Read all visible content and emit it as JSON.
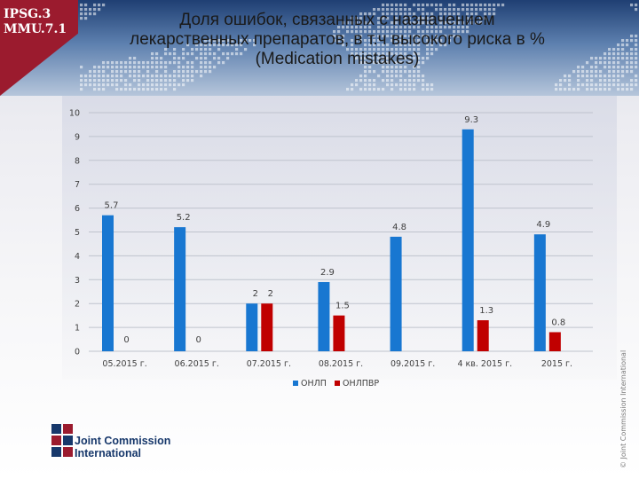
{
  "badge": {
    "text": "IPSG.3\nMMU.7.1"
  },
  "title": {
    "line1": "Доля ошибок, связанных с назначением",
    "line2": "лекарственных препаратов, в т.ч высокого риска в %",
    "line3": "(Medication mistakes)"
  },
  "copyright": "© Joint Commission International",
  "logo": {
    "text": "Joint Commission\nInternational"
  },
  "colors": {
    "accent": "#9b1b2e",
    "onlp": "#1877d1",
    "onlpvr": "#c00000",
    "brand": "#17386b"
  },
  "chart_data": {
    "type": "bar",
    "title": "Доля ошибок, связанных с назначением лекарственных препаратов, в т.ч высокого риска в % (Medication mistakes)",
    "categories": [
      "05.2015 г.",
      "06.2015 г.",
      "07.2015 г.",
      "08.2015 г.",
      "09.2015 г.",
      "4 кв. 2015 г.",
      "2015 г."
    ],
    "series": [
      {
        "name": "ОНЛП",
        "color": "#1877d1",
        "values": [
          5.7,
          5.2,
          2,
          2.9,
          4.8,
          9.3,
          4.9
        ]
      },
      {
        "name": "ОНЛПВР",
        "color": "#c00000",
        "values": [
          0,
          0,
          2,
          1.5,
          null,
          1.3,
          0.8
        ]
      }
    ],
    "value_labels": {
      "ОНЛП": [
        "5.7",
        "5.2",
        "2",
        "2.9",
        "4.8",
        "9.3",
        "4.9"
      ],
      "ОНЛПВР": [
        "0",
        "0",
        "2",
        "1.5",
        "",
        "1.3",
        "0.8"
      ]
    },
    "ylim": [
      0,
      10
    ],
    "yticks": [
      0,
      1,
      2,
      3,
      4,
      5,
      6,
      7,
      8,
      9,
      10
    ],
    "xlabel": "",
    "ylabel": "",
    "grid": true,
    "legend": "bottom"
  }
}
